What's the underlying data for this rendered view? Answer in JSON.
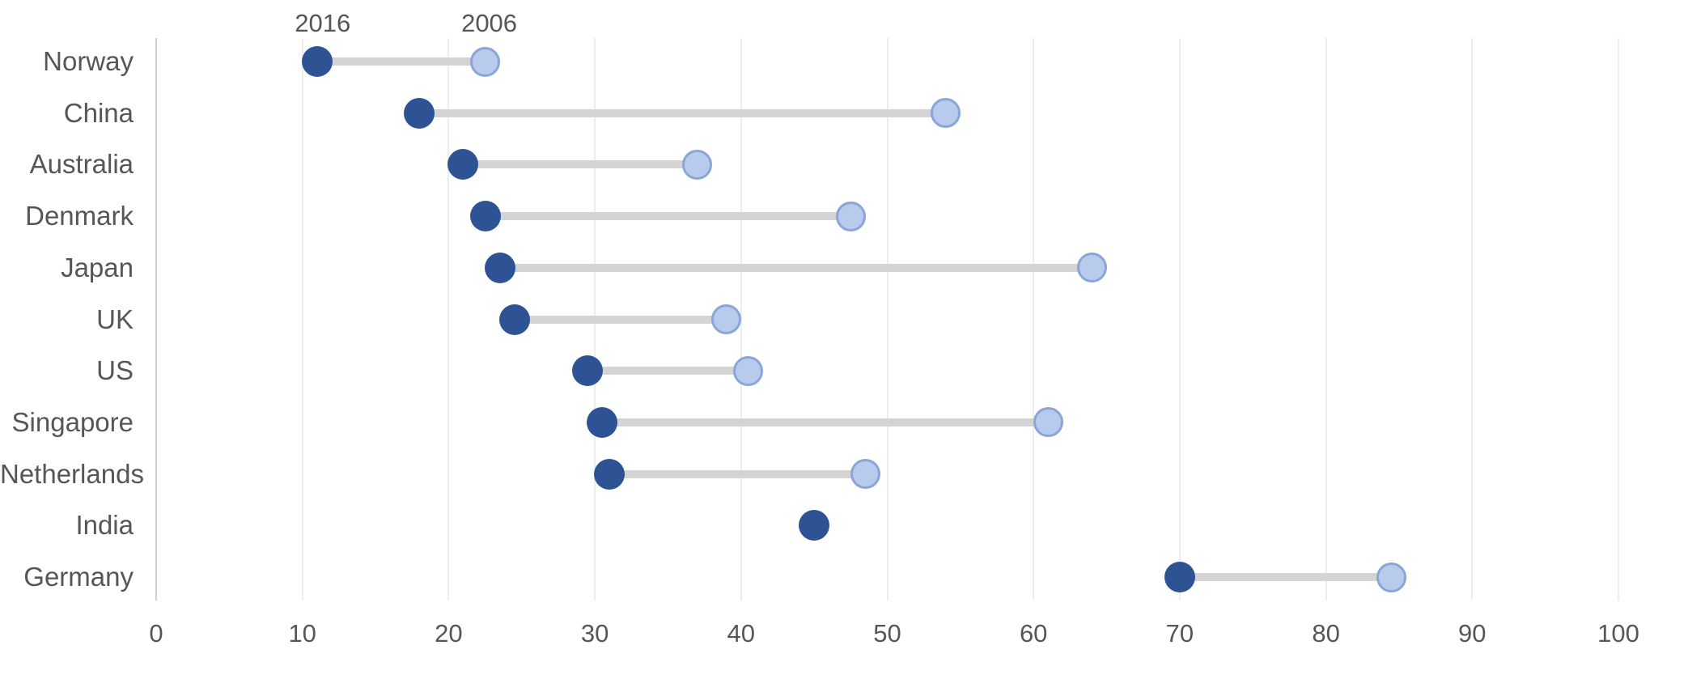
{
  "chart_data": {
    "type": "dumbbell",
    "title": "",
    "xlabel": "",
    "ylabel": "",
    "categories": [
      "Norway",
      "China",
      "Australia",
      "Denmark",
      "Japan",
      "UK",
      "US",
      "Singapore",
      "Netherlands",
      "India",
      "Germany"
    ],
    "series": [
      {
        "name": "2016",
        "color": "#2e5394",
        "values": [
          11,
          18,
          21,
          22.5,
          23.5,
          24.5,
          29.5,
          30.5,
          31,
          45,
          70
        ]
      },
      {
        "name": "2006",
        "color": "#b9cbec",
        "border_color": "#8aa5d9",
        "values": [
          22.5,
          54,
          37,
          47.5,
          64,
          39,
          40.5,
          61,
          48.5,
          null,
          84.5
        ]
      }
    ],
    "x_axis": {
      "min": 0,
      "max": 100,
      "ticks": [
        0,
        10,
        20,
        30,
        40,
        50,
        60,
        70,
        80,
        90,
        100
      ]
    },
    "legend_position": "above first row dots",
    "grid": "vertical gridlines at every 10",
    "colors": {
      "connector": "#d4d4d4",
      "gridline": "#ededed",
      "axis_line": "#cfcfcf",
      "text": "#565656",
      "background": "#ffffff"
    }
  }
}
